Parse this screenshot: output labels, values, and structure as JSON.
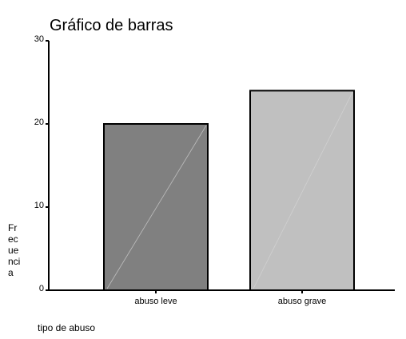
{
  "chart_data": {
    "type": "bar",
    "title": "Gráfico de barras",
    "xlabel": "tipo de abuso",
    "ylabel_lines": [
      "Fr",
      "ec",
      "ue",
      "nci",
      "a"
    ],
    "categories": [
      "abuso leve",
      "abuso grave"
    ],
    "values": [
      20,
      24
    ],
    "colors": [
      "#808080",
      "#c0c0c0"
    ],
    "ylim": [
      0,
      30
    ],
    "yticks": [
      0,
      10,
      20,
      30
    ],
    "grid": false,
    "legend": "none"
  }
}
